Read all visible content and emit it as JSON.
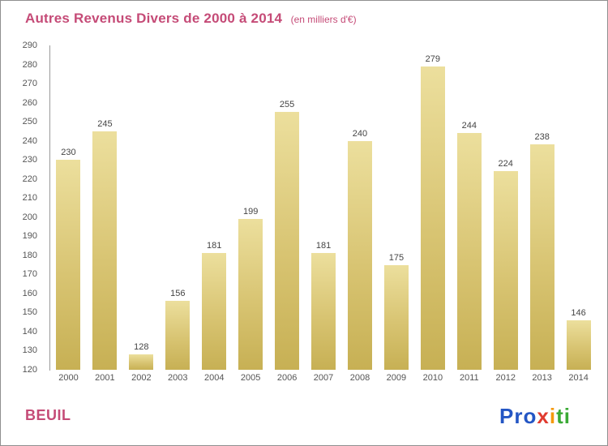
{
  "title": "Autres Revenus Divers de 2000 à 2014",
  "subtitle": "(en milliers d'€)",
  "footer": {
    "place": "BEUIL",
    "logo_name": "Proxiti",
    "logo_letters": [
      {
        "ch": "P",
        "color": "#2456c4"
      },
      {
        "ch": "r",
        "color": "#2456c4"
      },
      {
        "ch": "o",
        "color": "#2456c4"
      },
      {
        "ch": "x",
        "color": "#e03b2f"
      },
      {
        "ch": "i",
        "color": "#f5990b"
      },
      {
        "ch": "t",
        "color": "#3aaa35"
      },
      {
        "ch": "i",
        "color": "#3aaa35"
      }
    ]
  },
  "colors": {
    "title_pink": "#c54b77",
    "bar_top": "#ecdf9d",
    "bar_bottom": "#c7b054",
    "axis_gray": "#9a9a9a",
    "label_gray": "#555555"
  },
  "chart_data": {
    "type": "bar",
    "title": "Autres Revenus Divers de 2000 à 2014 (en milliers d'€)",
    "categories": [
      "2000",
      "2001",
      "2002",
      "2003",
      "2004",
      "2005",
      "2006",
      "2007",
      "2008",
      "2009",
      "2010",
      "2011",
      "2012",
      "2013",
      "2014"
    ],
    "values": [
      230,
      245,
      128,
      156,
      181,
      199,
      255,
      181,
      240,
      175,
      279,
      244,
      224,
      238,
      146
    ],
    "xlabel": "",
    "ylabel": "",
    "ylim": [
      120,
      290
    ],
    "ytick_step": 10,
    "grid": false,
    "legend": false
  }
}
